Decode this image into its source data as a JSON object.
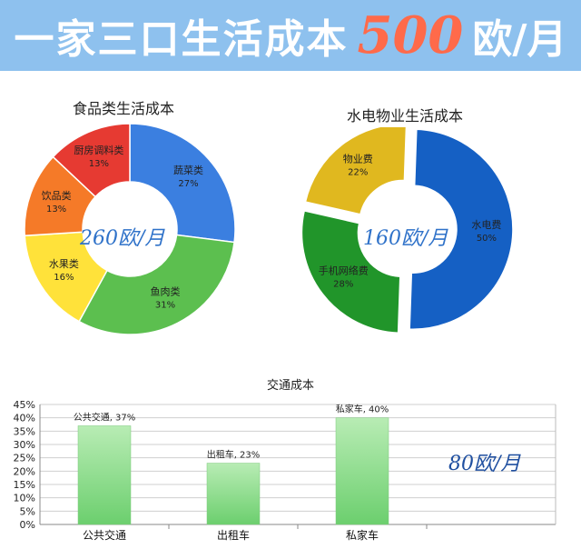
{
  "banner": {
    "title": "一家三口生活成本",
    "amount": "500",
    "unit": "欧/月"
  },
  "chart_data": [
    {
      "type": "pie",
      "title": "食品类生活成本",
      "center_label": "260欧/月",
      "slices": [
        {
          "label": "蔬菜类",
          "value": 27,
          "value_text": "27%",
          "color": "#3b7fe0"
        },
        {
          "label": "鱼肉类",
          "value": 31,
          "value_text": "31%",
          "color": "#5cbf4f"
        },
        {
          "label": "水果类",
          "value": 16,
          "value_text": "16%",
          "color": "#ffe23a"
        },
        {
          "label": "饮品类",
          "value": 13,
          "value_text": "13%",
          "color": "#f57a28"
        },
        {
          "label": "厨房调料类",
          "value": 13,
          "value_text": "13%",
          "color": "#e63a32"
        }
      ]
    },
    {
      "type": "pie",
      "title": "水电物业生活成本",
      "center_label": "160欧/月",
      "slices": [
        {
          "label": "水电费",
          "value": 50,
          "value_text": "50%",
          "color": "#1560c4"
        },
        {
          "label": "手机网络费",
          "value": 28,
          "value_text": "28%",
          "color": "#21952a"
        },
        {
          "label": "物业费",
          "value": 22,
          "value_text": "22%",
          "color": "#e0b81f"
        }
      ]
    },
    {
      "type": "bar",
      "title": "交通成本",
      "categories": [
        "公共交通",
        "出租车",
        "私家车"
      ],
      "values": [
        37,
        23,
        40
      ],
      "data_labels": [
        "公共交通, 37%",
        "出租车, 23%",
        "私家车, 40%"
      ],
      "ylim": [
        0,
        45
      ],
      "yticks": [
        "0%",
        "5%",
        "10%",
        "15%",
        "20%",
        "25%",
        "30%",
        "35%",
        "40%",
        "45%"
      ],
      "grid": true,
      "side_label": "80欧/月",
      "bar_color": "#6ccf6e"
    }
  ]
}
